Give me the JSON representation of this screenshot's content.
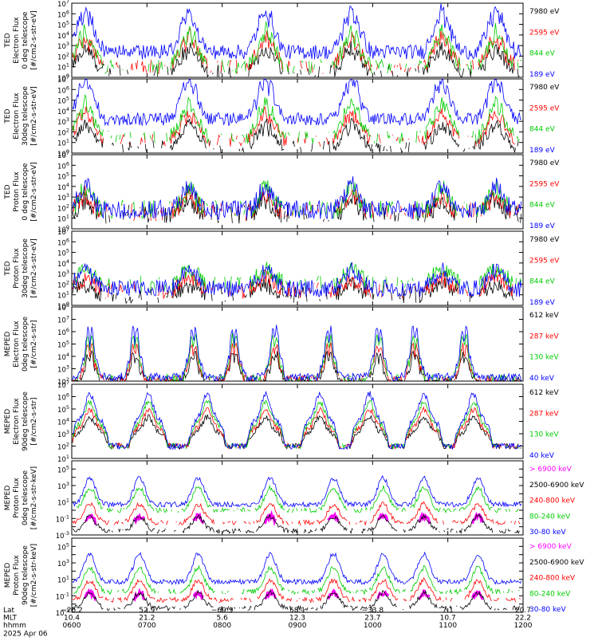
{
  "figure": {
    "time_axis": {
      "labels": [
        "Lat",
        "MLT",
        "hhmm",
        "2025 Apr 06"
      ],
      "ticks": [
        {
          "lat": "−26.2",
          "mlt": "10.4",
          "hhmm": "0600"
        },
        {
          "lat": "52.9",
          "mlt": "21.2",
          "hhmm": "0700"
        },
        {
          "lat": "−69.9",
          "mlt": "5.6",
          "hhmm": "0800"
        },
        {
          "lat": "58.1",
          "mlt": "12.3",
          "hhmm": "0900"
        },
        {
          "lat": "−33.8",
          "mlt": "23.7",
          "hhmm": "1000"
        },
        {
          "lat": "7.1",
          "mlt": "10.7",
          "hhmm": "1100"
        },
        {
          "lat": "20.7",
          "mlt": "22.2",
          "hhmm": "1200"
        }
      ]
    }
  },
  "chart_data": [
    {
      "type": "line",
      "ylabel": [
        "TED",
        "Electron Flux",
        "0 deg telescope",
        "[#/cm2-s-str-eV]"
      ],
      "ylog": true,
      "ylim_exp": [
        0,
        7
      ],
      "legend": [
        {
          "name": "7980 eV",
          "color": "#000000"
        },
        {
          "name": "2595 eV",
          "color": "#ff0000"
        },
        {
          "name": "844 eV",
          "color": "#00cc00"
        },
        {
          "name": "189 eV",
          "color": "#0000ff"
        }
      ],
      "x_range_hhmm": [
        "0600",
        "1200"
      ],
      "base_log": [
        0.5,
        1.0,
        1.0,
        2.4
      ],
      "noise": 0.7,
      "pass_profile": "cusp",
      "pass_amp": 4.2,
      "passes": [
        0.03,
        0.26,
        0.43,
        0.62,
        0.82,
        0.94
      ]
    },
    {
      "type": "line",
      "ylabel": [
        "TED",
        "Electron Flux",
        "30deg telescope",
        "[#/cm2-s-str-eV]"
      ],
      "ylog": true,
      "ylim_exp": [
        0,
        7
      ],
      "legend": [
        {
          "name": "7980 eV",
          "color": "#000000"
        },
        {
          "name": "2595 eV",
          "color": "#ff0000"
        },
        {
          "name": "844 eV",
          "color": "#00cc00"
        },
        {
          "name": "189 eV",
          "color": "#0000ff"
        }
      ],
      "x_range_hhmm": [
        "0600",
        "1200"
      ],
      "base_log": [
        0.6,
        1.2,
        1.5,
        3.2
      ],
      "noise": 0.6,
      "pass_profile": "cusp",
      "pass_amp": 4.0,
      "passes": [
        0.03,
        0.26,
        0.43,
        0.62,
        0.82,
        0.94
      ]
    },
    {
      "type": "line",
      "ylabel": [
        "TED",
        "Proton Flux",
        "0 deg telescope",
        "[#/cm2-s-str-eV]"
      ],
      "ylog": true,
      "ylim_exp": [
        0,
        7
      ],
      "legend": [
        {
          "name": "7980 eV",
          "color": "#000000"
        },
        {
          "name": "2595 eV",
          "color": "#ff0000"
        },
        {
          "name": "844 eV",
          "color": "#00cc00"
        },
        {
          "name": "189 eV",
          "color": "#0000ff"
        }
      ],
      "x_range_hhmm": [
        "0600",
        "1200"
      ],
      "base_log": [
        1.4,
        1.6,
        1.8,
        1.8
      ],
      "noise": 0.9,
      "pass_profile": "noisy",
      "pass_amp": 2.6,
      "passes": [
        0.03,
        0.26,
        0.43,
        0.62,
        0.82,
        0.94
      ]
    },
    {
      "type": "line",
      "ylabel": [
        "TED",
        "Proton Flux",
        "30deg telescope",
        "[#/cm2-s-str-eV]"
      ],
      "ylog": true,
      "ylim_exp": [
        0,
        7
      ],
      "legend": [
        {
          "name": "7980 eV",
          "color": "#000000"
        },
        {
          "name": "2595 eV",
          "color": "#ff0000"
        },
        {
          "name": "844 eV",
          "color": "#00cc00"
        },
        {
          "name": "189 eV",
          "color": "#0000ff"
        }
      ],
      "x_range_hhmm": [
        "0600",
        "1200"
      ],
      "base_log": [
        1.0,
        1.4,
        2.0,
        1.6
      ],
      "noise": 0.8,
      "pass_profile": "broad",
      "pass_amp": 2.2,
      "passes": [
        0.03,
        0.26,
        0.43,
        0.62,
        0.82,
        0.94
      ]
    },
    {
      "type": "line",
      "ylabel": [
        "MEPED",
        "Electron Flux",
        "0deg telescope",
        "[#/cm2-s-str]"
      ],
      "ylog": true,
      "ylim_exp": [
        2,
        8
      ],
      "legend": [
        {
          "name": "612 keV",
          "color": "#000000"
        },
        {
          "name": "287 keV",
          "color": "#ff0000"
        },
        {
          "name": "130 keV",
          "color": "#00cc00"
        },
        {
          "name": "40 keV",
          "color": "#0000ff"
        }
      ],
      "x_range_hhmm": [
        "0600",
        "1200"
      ],
      "base_log": [
        2.0,
        2.1,
        2.2,
        2.3
      ],
      "noise": 0.35,
      "pass_profile": "spiky",
      "pass_amp": 4.5,
      "passes": [
        0.04,
        0.14,
        0.27,
        0.36,
        0.45,
        0.57,
        0.68,
        0.76,
        0.87
      ]
    },
    {
      "type": "line",
      "ylabel": [
        "MEPED",
        "Electron Flux",
        "90deg telescope",
        "[#/cm2-s-str]"
      ],
      "ylog": true,
      "ylim_exp": [
        1,
        7
      ],
      "legend": [
        {
          "name": "612 keV",
          "color": "#000000"
        },
        {
          "name": "287 keV",
          "color": "#ff0000"
        },
        {
          "name": "130 keV",
          "color": "#00cc00"
        },
        {
          "name": "40 keV",
          "color": "#0000ff"
        }
      ],
      "x_range_hhmm": [
        "0600",
        "1200"
      ],
      "base_log": [
        2.0,
        2.0,
        2.0,
        2.0
      ],
      "noise": 0.25,
      "pass_profile": "belt",
      "pass_amp": 4.2,
      "passes": [
        0.04,
        0.17,
        0.3,
        0.43,
        0.55,
        0.66,
        0.78,
        0.89
      ]
    },
    {
      "type": "line",
      "ylabel": [
        "MEPED",
        "Proton Flux",
        "0deg telescope",
        "[#/cm2-s-str-keV]"
      ],
      "ylog": true,
      "ylim_exp": [
        -3,
        6
      ],
      "legend": [
        {
          "name": "> 6900 keV",
          "color": "#ff00ff"
        },
        {
          "name": "2500-6900 keV",
          "color": "#000000"
        },
        {
          "name": "240-800 keV",
          "color": "#ff0000"
        },
        {
          "name": "80-240 keV",
          "color": "#00cc00"
        },
        {
          "name": "30-80 keV",
          "color": "#0000ff"
        }
      ],
      "x_range_hhmm": [
        "0600",
        "1200"
      ],
      "base_log": [
        -2.5,
        -2.5,
        -1.5,
        0.0,
        0.7
      ],
      "noise": 0.3,
      "pass_profile": "proton",
      "pass_amp": 3.2,
      "passes": [
        0.04,
        0.15,
        0.28,
        0.44,
        0.58,
        0.69,
        0.78,
        0.9
      ]
    },
    {
      "type": "line",
      "ylabel": [
        "MEPED",
        "Proton Flux",
        "90deg telescope",
        "[#/cm2-s-str-keV]"
      ],
      "ylog": true,
      "ylim_exp": [
        -3,
        6
      ],
      "legend": [
        {
          "name": "> 6900 keV",
          "color": "#ff00ff"
        },
        {
          "name": "2500-6900 keV",
          "color": "#000000"
        },
        {
          "name": "240-800 keV",
          "color": "#ff0000"
        },
        {
          "name": "80-240 keV",
          "color": "#00cc00"
        },
        {
          "name": "30-80 keV",
          "color": "#0000ff"
        }
      ],
      "x_range_hhmm": [
        "0600",
        "1200"
      ],
      "base_log": [
        -2.5,
        -2.5,
        -1.5,
        -0.5,
        0.7
      ],
      "noise": 0.3,
      "pass_profile": "proton",
      "pass_amp": 3.4,
      "passes": [
        0.04,
        0.15,
        0.28,
        0.44,
        0.58,
        0.69,
        0.78,
        0.9
      ]
    }
  ]
}
